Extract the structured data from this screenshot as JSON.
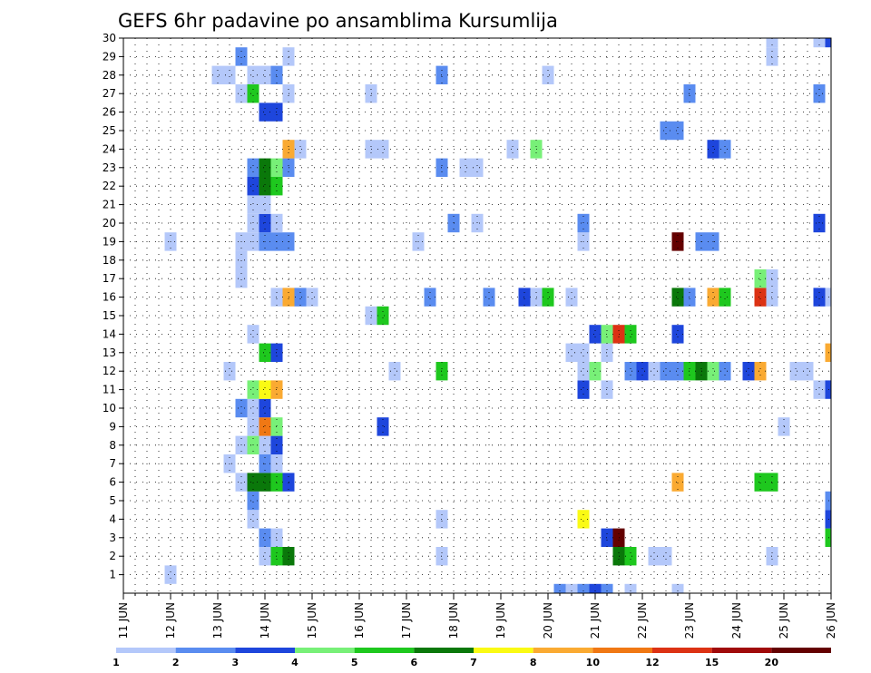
{
  "chart_data": {
    "type": "heatmap",
    "title": "GEFS 6hr padavine po ansamblima Kursumlija",
    "xlabel": "",
    "ylabel": "",
    "x_tick_labels": [
      "11 JUN",
      "12 JUN",
      "13 JUN",
      "14 JUN",
      "15 JUN",
      "16 JUN",
      "17 JUN",
      "18 JUN",
      "19 JUN",
      "20 JUN",
      "21 JUN",
      "22 JUN",
      "23 JUN",
      "24 JUN",
      "25 JUN",
      "26 JUN"
    ],
    "y_tick_labels": [
      "1",
      "2",
      "3",
      "4",
      "5",
      "6",
      "7",
      "8",
      "9",
      "10",
      "11",
      "12",
      "13",
      "14",
      "15",
      "16",
      "17",
      "18",
      "19",
      "20",
      "21",
      "22",
      "23",
      "24",
      "25",
      "26",
      "27",
      "28",
      "29",
      "30"
    ],
    "xlim_days": [
      11,
      26
    ],
    "ylim_members": [
      0,
      30
    ],
    "grid": "dotted",
    "colorbar": {
      "position": "bottom",
      "labels": [
        "1",
        "2",
        "3",
        "4",
        "5",
        "6",
        "7",
        "8",
        "10",
        "12",
        "15",
        "20"
      ],
      "colors": [
        "#b4c8fa",
        "#5a8cf0",
        "#1e46dc",
        "#78f078",
        "#1ec81e",
        "#0a780a",
        "#fafa14",
        "#faaa32",
        "#f07814",
        "#dc3214",
        "#a00a0a",
        "#640000"
      ]
    },
    "cells": [
      [
        12.0,
        1,
        0
      ],
      [
        12.0,
        19,
        0
      ],
      [
        13.25,
        7,
        0
      ],
      [
        13.0,
        28,
        0
      ],
      [
        13.25,
        28,
        0
      ],
      [
        13.25,
        12,
        0
      ],
      [
        13.5,
        27,
        0
      ],
      [
        13.5,
        29,
        1
      ],
      [
        13.5,
        27,
        0
      ],
      [
        13.5,
        6,
        0
      ],
      [
        13.5,
        8,
        0
      ],
      [
        13.5,
        10,
        1
      ],
      [
        13.5,
        17,
        0
      ],
      [
        13.5,
        18,
        0
      ],
      [
        13.5,
        19,
        0
      ],
      [
        13.75,
        27,
        4
      ],
      [
        13.75,
        4,
        0
      ],
      [
        13.75,
        5,
        1
      ],
      [
        13.75,
        6,
        5
      ],
      [
        13.75,
        8,
        3
      ],
      [
        13.75,
        9,
        0
      ],
      [
        13.75,
        10,
        0
      ],
      [
        13.75,
        11,
        3
      ],
      [
        13.75,
        14,
        0
      ],
      [
        13.75,
        19,
        0
      ],
      [
        13.75,
        20,
        0
      ],
      [
        13.75,
        21,
        0
      ],
      [
        13.75,
        22,
        2
      ],
      [
        13.75,
        23,
        1
      ],
      [
        13.75,
        28,
        0
      ],
      [
        14.0,
        2,
        0
      ],
      [
        14.0,
        3,
        1
      ],
      [
        14.0,
        6,
        5
      ],
      [
        14.0,
        7,
        1
      ],
      [
        14.0,
        8,
        0
      ],
      [
        14.0,
        9,
        8
      ],
      [
        14.0,
        10,
        2
      ],
      [
        14.0,
        11,
        6
      ],
      [
        14.0,
        13,
        4
      ],
      [
        14.0,
        19,
        1
      ],
      [
        14.0,
        20,
        2
      ],
      [
        14.0,
        21,
        0
      ],
      [
        14.0,
        22,
        5
      ],
      [
        14.0,
        23,
        5
      ],
      [
        14.0,
        26,
        2
      ],
      [
        14.0,
        28,
        0
      ],
      [
        14.25,
        2,
        4
      ],
      [
        14.25,
        3,
        0
      ],
      [
        14.25,
        6,
        4
      ],
      [
        14.25,
        7,
        0
      ],
      [
        14.25,
        8,
        2
      ],
      [
        14.25,
        9,
        3
      ],
      [
        14.25,
        11,
        7
      ],
      [
        14.25,
        13,
        2
      ],
      [
        14.25,
        16,
        0
      ],
      [
        14.25,
        19,
        1
      ],
      [
        14.25,
        20,
        0
      ],
      [
        14.25,
        22,
        4
      ],
      [
        14.25,
        23,
        3
      ],
      [
        14.25,
        26,
        2
      ],
      [
        14.25,
        28,
        1
      ],
      [
        14.5,
        2,
        5
      ],
      [
        14.5,
        6,
        2
      ],
      [
        14.5,
        16,
        7
      ],
      [
        14.5,
        19,
        1
      ],
      [
        14.5,
        23,
        1
      ],
      [
        14.5,
        24,
        7
      ],
      [
        14.5,
        27,
        0
      ],
      [
        14.5,
        29,
        0
      ],
      [
        14.75,
        16,
        1
      ],
      [
        14.75,
        24,
        0
      ],
      [
        15.0,
        16,
        0
      ],
      [
        16.25,
        15,
        0
      ],
      [
        16.25,
        24,
        0
      ],
      [
        16.25,
        27,
        0
      ],
      [
        16.5,
        9,
        2
      ],
      [
        16.5,
        15,
        4
      ],
      [
        16.5,
        24,
        0
      ],
      [
        16.75,
        12,
        0
      ],
      [
        17.25,
        19,
        0
      ],
      [
        17.5,
        16,
        1
      ],
      [
        17.75,
        2,
        0
      ],
      [
        17.75,
        4,
        0
      ],
      [
        17.75,
        12,
        4
      ],
      [
        17.75,
        23,
        1
      ],
      [
        17.75,
        28,
        1
      ],
      [
        18.0,
        20,
        1
      ],
      [
        18.25,
        23,
        0
      ],
      [
        18.5,
        23,
        0
      ],
      [
        18.5,
        20,
        0
      ],
      [
        18.75,
        16,
        1
      ],
      [
        19.25,
        24,
        0
      ],
      [
        19.5,
        16,
        2
      ],
      [
        19.75,
        16,
        0
      ],
      [
        19.75,
        24,
        3
      ],
      [
        20.0,
        16,
        4
      ],
      [
        20.0,
        28,
        0
      ],
      [
        20.25,
        0,
        1
      ],
      [
        20.5,
        0,
        0
      ],
      [
        20.5,
        13,
        0
      ],
      [
        20.5,
        16,
        0
      ],
      [
        20.75,
        4,
        6
      ],
      [
        20.75,
        13,
        0
      ],
      [
        20.75,
        11,
        2
      ],
      [
        20.75,
        12,
        0
      ],
      [
        20.75,
        19,
        0
      ],
      [
        20.75,
        20,
        1
      ],
      [
        20.75,
        0,
        1
      ],
      [
        21.0,
        12,
        3
      ],
      [
        21.0,
        14,
        2
      ],
      [
        21.0,
        0,
        2
      ],
      [
        21.25,
        3,
        2
      ],
      [
        21.25,
        11,
        0
      ],
      [
        21.25,
        13,
        0
      ],
      [
        21.25,
        14,
        3
      ],
      [
        21.25,
        0,
        1
      ],
      [
        21.5,
        2,
        5
      ],
      [
        21.5,
        3,
        11
      ],
      [
        21.5,
        14,
        9
      ],
      [
        21.75,
        2,
        4
      ],
      [
        21.75,
        12,
        1
      ],
      [
        21.75,
        14,
        4
      ],
      [
        21.75,
        0,
        0
      ],
      [
        22.0,
        12,
        2
      ],
      [
        22.25,
        2,
        0
      ],
      [
        22.25,
        12,
        0
      ],
      [
        22.5,
        2,
        0
      ],
      [
        22.5,
        12,
        1
      ],
      [
        22.5,
        25,
        1
      ],
      [
        22.75,
        6,
        7
      ],
      [
        22.75,
        12,
        1
      ],
      [
        22.75,
        14,
        2
      ],
      [
        22.75,
        16,
        5
      ],
      [
        22.75,
        19,
        11
      ],
      [
        22.75,
        25,
        1
      ],
      [
        22.75,
        0,
        0
      ],
      [
        23.0,
        12,
        4
      ],
      [
        23.0,
        16,
        1
      ],
      [
        23.0,
        27,
        1
      ],
      [
        23.25,
        12,
        5
      ],
      [
        23.25,
        19,
        1
      ],
      [
        23.5,
        12,
        3
      ],
      [
        23.5,
        19,
        1
      ],
      [
        23.5,
        16,
        7
      ],
      [
        23.75,
        12,
        1
      ],
      [
        23.75,
        16,
        4
      ],
      [
        23.75,
        24,
        1
      ],
      [
        23.5,
        24,
        2
      ],
      [
        24.25,
        12,
        2
      ],
      [
        24.5,
        6,
        4
      ],
      [
        24.5,
        12,
        7
      ],
      [
        24.5,
        16,
        9
      ],
      [
        24.5,
        17,
        3
      ],
      [
        24.75,
        6,
        4
      ],
      [
        24.75,
        16,
        0
      ],
      [
        24.75,
        17,
        0
      ],
      [
        24.75,
        29,
        0
      ],
      [
        24.75,
        2,
        0
      ],
      [
        24.75,
        30,
        0
      ],
      [
        25.0,
        9,
        0
      ],
      [
        25.25,
        12,
        0
      ],
      [
        25.5,
        12,
        0
      ],
      [
        25.75,
        11,
        0
      ],
      [
        25.75,
        16,
        2
      ],
      [
        25.75,
        20,
        2
      ],
      [
        25.75,
        27,
        1
      ],
      [
        25.75,
        30,
        0
      ],
      [
        26.0,
        3,
        4
      ],
      [
        26.0,
        4,
        2
      ],
      [
        26.0,
        5,
        1
      ],
      [
        26.0,
        11,
        2
      ],
      [
        26.0,
        13,
        7
      ],
      [
        26.0,
        16,
        0
      ],
      [
        26.0,
        30,
        2
      ]
    ]
  }
}
